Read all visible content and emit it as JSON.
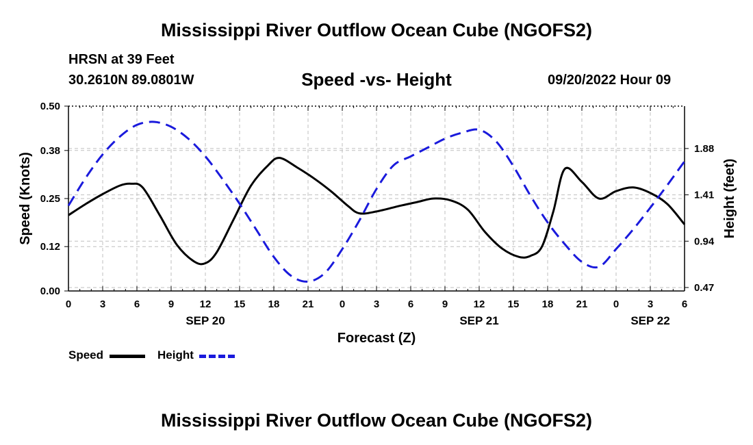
{
  "header": {
    "title": "Mississippi River Outflow Ocean Cube (NGOFS2)",
    "station": "HRSN at 39 Feet",
    "coords": "30.2610N  89.0801W",
    "subtitle": "Speed -vs- Height",
    "datetime": "09/20/2022 Hour 09"
  },
  "footer": {
    "title": "Mississippi River Outflow Ocean Cube (NGOFS2)"
  },
  "legend": {
    "speed": "Speed",
    "height": "Height"
  },
  "colors": {
    "speed": "#000000",
    "height": "#1a1adc",
    "grid": "#bfbfbf"
  },
  "chart_data": {
    "type": "line",
    "title": "Speed -vs- Height",
    "xlabel": "Forecast (Z)",
    "ylabel": "Speed (Knots)",
    "y2label": "Height (feet)",
    "xlim": [
      0,
      54
    ],
    "ylim": [
      0,
      0.5
    ],
    "y2lim": [
      0.435,
      2.31
    ],
    "x_tick_values": [
      0,
      3,
      6,
      9,
      12,
      15,
      18,
      21,
      24,
      27,
      30,
      33,
      36,
      39,
      42,
      45,
      48,
      51,
      54
    ],
    "x_tick_labels": [
      "0",
      "3",
      "6",
      "9",
      "12",
      "15",
      "18",
      "21",
      "0",
      "3",
      "6",
      "9",
      "12",
      "15",
      "18",
      "21",
      "0",
      "3",
      "6"
    ],
    "date_labels": [
      {
        "label": "SEP 20",
        "x": 12
      },
      {
        "label": "SEP 21",
        "x": 36
      },
      {
        "label": "SEP 22",
        "x": 51
      }
    ],
    "y_ticks": [
      0.0,
      0.12,
      0.25,
      0.38,
      0.5
    ],
    "y_tick_labels": [
      "0.00",
      "0.12",
      "0.25",
      "0.38",
      "0.50"
    ],
    "y2_ticks": [
      0.47,
      0.94,
      1.41,
      1.88
    ],
    "y2_tick_labels": [
      "0.47",
      "0.94",
      "1.41",
      "1.88"
    ],
    "series": [
      {
        "name": "Speed",
        "axis": "left",
        "style": "solid",
        "x": [
          0,
          1.5,
          3,
          4.5,
          5.5,
          6.5,
          8,
          9.5,
          11,
          12,
          13,
          14.5,
          16,
          17.5,
          18.5,
          20,
          21.5,
          23,
          24.5,
          25.5,
          27,
          29,
          30.5,
          32,
          33.5,
          35,
          36.5,
          38,
          39.5,
          40.5,
          41.5,
          42.5,
          43.5,
          45,
          46.5,
          48,
          49.5,
          51,
          52.5,
          54
        ],
        "values": [
          0.205,
          0.235,
          0.262,
          0.285,
          0.29,
          0.28,
          0.205,
          0.125,
          0.08,
          0.075,
          0.105,
          0.195,
          0.285,
          0.34,
          0.36,
          0.335,
          0.305,
          0.27,
          0.23,
          0.21,
          0.215,
          0.23,
          0.24,
          0.25,
          0.245,
          0.22,
          0.16,
          0.115,
          0.092,
          0.095,
          0.12,
          0.215,
          0.33,
          0.295,
          0.25,
          0.27,
          0.28,
          0.265,
          0.235,
          0.18
        ]
      },
      {
        "name": "Height",
        "axis": "right",
        "style": "dashed",
        "x": [
          0,
          1.5,
          3,
          4.5,
          6,
          7.5,
          9,
          10.5,
          12,
          13.5,
          15,
          16.5,
          18,
          19.5,
          21,
          22.5,
          24,
          25.5,
          27,
          28.5,
          30,
          31.5,
          33,
          34.5,
          36,
          37.5,
          39,
          40.5,
          42,
          43.5,
          45,
          46.5,
          48,
          49.5,
          51,
          52.5,
          54
        ],
        "values": [
          1.3,
          1.58,
          1.82,
          2.0,
          2.12,
          2.15,
          2.1,
          1.98,
          1.8,
          1.57,
          1.32,
          1.05,
          0.78,
          0.59,
          0.53,
          0.62,
          0.86,
          1.15,
          1.47,
          1.71,
          1.8,
          1.89,
          1.98,
          2.04,
          2.07,
          1.95,
          1.7,
          1.4,
          1.13,
          0.91,
          0.73,
          0.68,
          0.86,
          1.06,
          1.28,
          1.51,
          1.75
        ]
      }
    ]
  }
}
